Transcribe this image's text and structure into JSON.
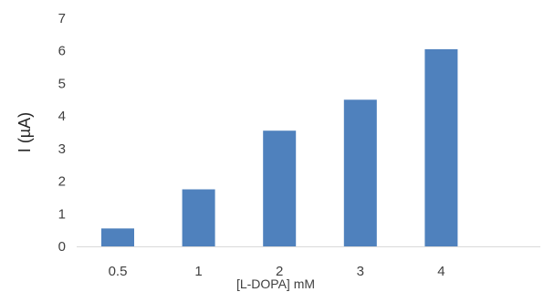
{
  "chart_data": {
    "type": "bar",
    "title": "",
    "xlabel": "[L-DOPA] mM",
    "ylabel": "I (µA)",
    "categories": [
      "0.5",
      "1",
      "2",
      "3",
      "4"
    ],
    "values": [
      0.55,
      1.75,
      3.55,
      4.5,
      6.05
    ],
    "ylim": [
      0,
      7
    ],
    "yticks": [
      "0",
      "1",
      "2",
      "3",
      "4",
      "5",
      "6",
      "7"
    ],
    "grid": false,
    "legend": "none",
    "bar_color": "#4f81bd",
    "axis_color": "#d9d9d9"
  }
}
